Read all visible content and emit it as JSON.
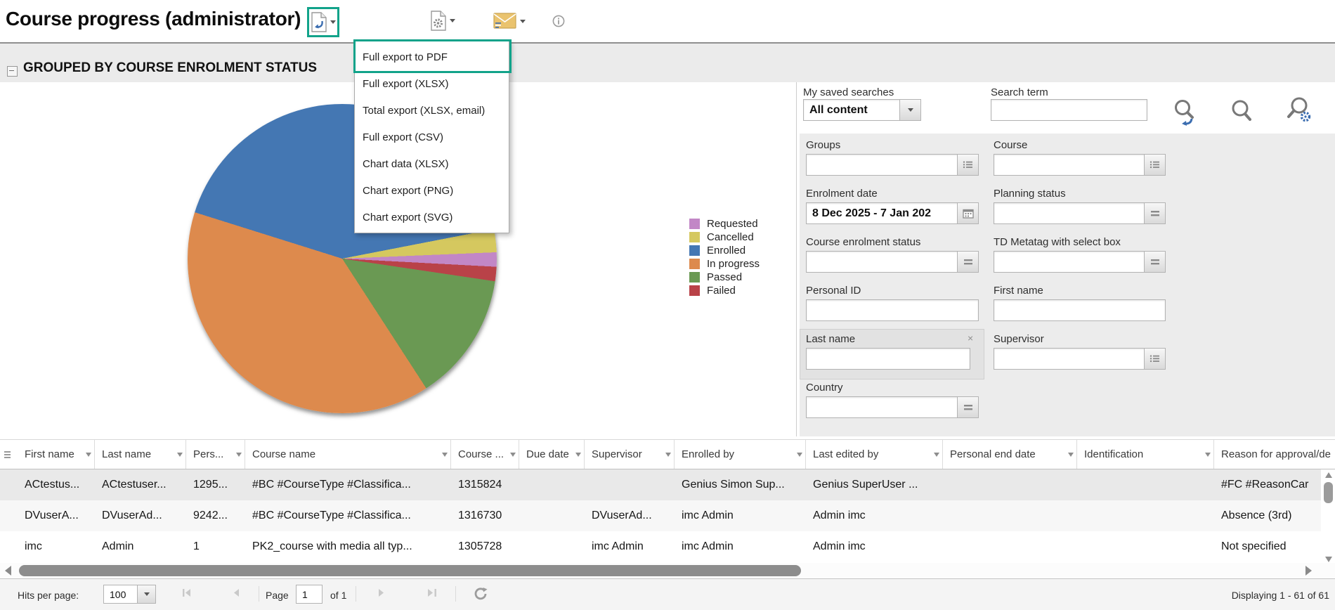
{
  "page": {
    "title": "Course progress (administrator)"
  },
  "toolbar": {
    "export_button": "export",
    "settings_button": "report settings",
    "email_button": "email",
    "info_button": "info"
  },
  "export_menu": {
    "highlighted_index": 0,
    "items": [
      "Full export to PDF",
      "Full export (XLSX)",
      "Total export (XLSX, email)",
      "Full export (CSV)",
      "Chart data (XLSX)",
      "Chart export (PNG)",
      "Chart export (SVG)"
    ]
  },
  "section": {
    "title": "GROUPED BY COURSE ENROLMENT STATUS"
  },
  "chart_data": {
    "type": "pie",
    "title": "GROUPED BY COURSE ENROLMENT STATUS",
    "legend_position": "right",
    "slices": [
      {
        "label": "Requested",
        "color": "#c287c6",
        "percent": 1.5
      },
      {
        "label": "Cancelled",
        "color": "#d5c85f",
        "percent": 2.4
      },
      {
        "label": "Enrolled",
        "color": "#4477b3",
        "percent": 42.1
      },
      {
        "label": "In progress",
        "color": "#dd8a4d",
        "percent": 39.0
      },
      {
        "label": "Passed",
        "color": "#6a9953",
        "percent": 13.5
      },
      {
        "label": "Failed",
        "color": "#b94248",
        "percent": 1.5
      }
    ],
    "pie_render": {
      "start_css_deg": 79,
      "order": [
        "Cancelled",
        "Requested",
        "Failed",
        "Passed",
        "In progress",
        "Enrolled"
      ]
    }
  },
  "filters": {
    "saved_searches": {
      "label": "My saved searches",
      "value": "All content"
    },
    "search_term": {
      "label": "Search term",
      "value": ""
    },
    "fields": [
      {
        "key": "groups",
        "label": "Groups",
        "value": "",
        "button": "list"
      },
      {
        "key": "course",
        "label": "Course",
        "value": "",
        "button": "list"
      },
      {
        "key": "enrolment_date",
        "label": "Enrolment date",
        "value": "8 Dec 2025 - 7 Jan 202",
        "button": "calendar",
        "bold": true
      },
      {
        "key": "planning_status",
        "label": "Planning status",
        "value": "",
        "button": "menu"
      },
      {
        "key": "course_enrolment_status",
        "label": "Course enrolment status",
        "value": "",
        "button": "menu"
      },
      {
        "key": "td_metatag",
        "label": "TD Metatag with select box",
        "value": "",
        "button": "menu"
      },
      {
        "key": "personal_id",
        "label": "Personal ID",
        "value": "",
        "button": null
      },
      {
        "key": "first_name",
        "label": "First name",
        "value": "",
        "button": null
      },
      {
        "key": "last_name",
        "label": "Last name",
        "value": "",
        "button": null,
        "removable": true
      },
      {
        "key": "supervisor",
        "label": "Supervisor",
        "value": "",
        "button": "list"
      },
      {
        "key": "country",
        "label": "Country",
        "value": "",
        "button": "menu"
      }
    ]
  },
  "table": {
    "columns": [
      "First name",
      "Last name",
      "Pers...",
      "Course name",
      "Course ...",
      "Due date",
      "Supervisor",
      "Enrolled by",
      "Last edited by",
      "Personal end date",
      "Identification",
      "Reason for approval/de"
    ],
    "rows": [
      [
        "ACtestus...",
        "ACtestuser...",
        "1295...",
        "#BC #CourseType #Classifica...",
        "1315824",
        "",
        "",
        "Genius Simon Sup...",
        "Genius SuperUser ...",
        "",
        "",
        "#FC #ReasonCar"
      ],
      [
        "DVuserA...",
        "DVuserAd...",
        "9242...",
        "#BC #CourseType #Classifica...",
        "1316730",
        "",
        "DVuserAd...",
        "imc Admin",
        "Admin imc",
        "",
        "",
        "Absence (3rd)"
      ],
      [
        "imc",
        "Admin",
        "1",
        "PK2_course with media all typ...",
        "1305728",
        "",
        "imc Admin",
        "imc Admin",
        "Admin imc",
        "",
        "",
        "Not specified"
      ]
    ],
    "row_colors": [
      "#e9e9e9",
      "#f7f7f7",
      "#ffffff"
    ]
  },
  "footer": {
    "hits_per_page_label": "Hits per page:",
    "hits_per_page_value": "100",
    "page_label": "Page",
    "page_value": "1",
    "of_label": "of 1",
    "displaying": "Displaying 1 - 61 of 61"
  },
  "colors": {
    "accent": "#12a38a"
  }
}
